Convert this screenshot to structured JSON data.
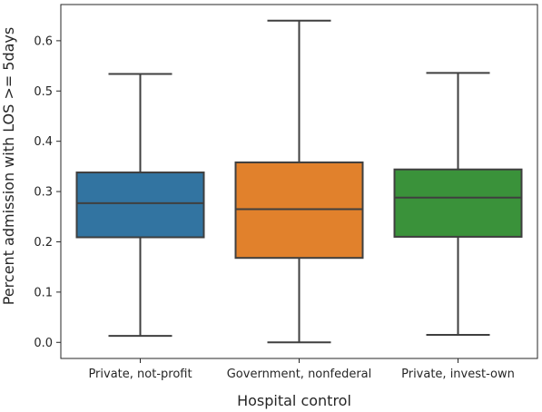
{
  "chart_data": {
    "type": "box",
    "xlabel": "Hospital control",
    "ylabel": "Percent admission with LOS >= 5days",
    "categories": [
      "Private, not-profit",
      "Government, nonfederal",
      "Private, invest-own"
    ],
    "colors": [
      "#3274a1",
      "#e1812c",
      "#3a923a"
    ],
    "series": [
      {
        "category": "Private, not-profit",
        "whisker_low": 0.013,
        "q1": 0.209,
        "median": 0.277,
        "q3": 0.338,
        "whisker_high": 0.534
      },
      {
        "category": "Government, nonfederal",
        "whisker_low": 0.0,
        "q1": 0.168,
        "median": 0.265,
        "q3": 0.358,
        "whisker_high": 0.64
      },
      {
        "category": "Private, invest-own",
        "whisker_low": 0.015,
        "q1": 0.21,
        "median": 0.288,
        "q3": 0.344,
        "whisker_high": 0.536
      }
    ],
    "yticks": [
      0.0,
      0.1,
      0.2,
      0.3,
      0.4,
      0.5,
      0.6
    ],
    "ytick_labels": [
      "0.0",
      "0.1",
      "0.2",
      "0.3",
      "0.4",
      "0.5",
      "0.6"
    ],
    "ylim": [
      -0.032,
      0.672
    ],
    "grid": false,
    "legend": false
  }
}
